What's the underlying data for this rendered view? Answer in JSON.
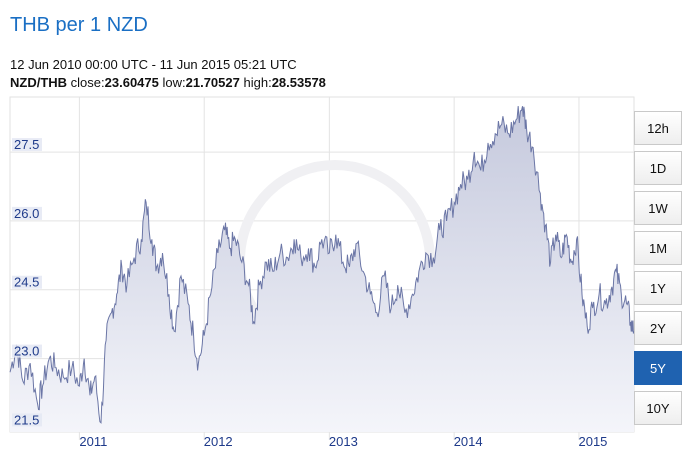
{
  "header": {
    "title": "THB per 1 NZD",
    "date_range": "12 Jun 2010 00:00 UTC - 11 Jun 2015 05:21 UTC",
    "pair": "NZD/THB",
    "close_label": "close:",
    "close_value": "23.60475",
    "low_label": "low:",
    "low_value": "21.70527",
    "high_label": "high:",
    "high_value": "28.53578"
  },
  "range_buttons": [
    {
      "label": "12h",
      "active": false
    },
    {
      "label": "1D",
      "active": false
    },
    {
      "label": "1W",
      "active": false
    },
    {
      "label": "1M",
      "active": false
    },
    {
      "label": "1Y",
      "active": false
    },
    {
      "label": "2Y",
      "active": false
    },
    {
      "label": "5Y",
      "active": true
    },
    {
      "label": "10Y",
      "active": false
    }
  ],
  "colors": {
    "title": "#1a6fc4",
    "line": "#6b76a6",
    "area_top": "#c5c9dd",
    "area_bottom": "#f4f5fa",
    "active_button": "#1f62b0",
    "y_label_bg": "#e4e7f3"
  },
  "chart_data": {
    "type": "area",
    "x_start": "2010-06-12",
    "x_end": "2015-06-11",
    "x_ticks": [
      "2011",
      "2012",
      "2013",
      "2014",
      "2015"
    ],
    "y_ticks": [
      21.5,
      23.0,
      24.5,
      26.0,
      27.5
    ],
    "ylim": [
      21.4,
      28.7
    ],
    "grid": true,
    "points": [
      [
        "2010-06-12",
        22.7
      ],
      [
        "2010-07-01",
        23.3
      ],
      [
        "2010-07-20",
        22.5
      ],
      [
        "2010-08-10",
        22.9
      ],
      [
        "2010-09-01",
        22.0
      ],
      [
        "2010-09-15",
        22.4
      ],
      [
        "2010-10-05",
        23.0
      ],
      [
        "2010-10-25",
        22.8
      ],
      [
        "2010-11-15",
        22.6
      ],
      [
        "2010-12-10",
        22.8
      ],
      [
        "2011-01-01",
        22.4
      ],
      [
        "2011-01-15",
        23.0
      ],
      [
        "2011-02-01",
        22.2
      ],
      [
        "2011-02-15",
        22.6
      ],
      [
        "2011-03-05",
        21.6
      ],
      [
        "2011-03-20",
        23.4
      ],
      [
        "2011-04-05",
        24.0
      ],
      [
        "2011-04-20",
        24.4
      ],
      [
        "2011-05-05",
        25.0
      ],
      [
        "2011-05-20",
        24.6
      ],
      [
        "2011-06-10",
        25.2
      ],
      [
        "2011-07-01",
        25.6
      ],
      [
        "2011-07-15",
        26.4
      ],
      [
        "2011-08-01",
        25.6
      ],
      [
        "2011-08-15",
        25.0
      ],
      [
        "2011-09-01",
        25.3
      ],
      [
        "2011-09-20",
        24.4
      ],
      [
        "2011-10-05",
        23.6
      ],
      [
        "2011-10-25",
        24.8
      ],
      [
        "2011-11-15",
        24.2
      ],
      [
        "2011-12-01",
        23.5
      ],
      [
        "2011-12-15",
        22.9
      ],
      [
        "2012-01-01",
        23.5
      ],
      [
        "2012-01-20",
        24.4
      ],
      [
        "2012-02-10",
        25.3
      ],
      [
        "2012-03-01",
        25.8
      ],
      [
        "2012-03-15",
        25.4
      ],
      [
        "2012-04-01",
        25.6
      ],
      [
        "2012-04-20",
        25.1
      ],
      [
        "2012-05-10",
        24.6
      ],
      [
        "2012-05-25",
        23.8
      ],
      [
        "2012-06-10",
        24.6
      ],
      [
        "2012-07-01",
        25.1
      ],
      [
        "2012-07-20",
        24.9
      ],
      [
        "2012-08-10",
        25.3
      ],
      [
        "2012-09-01",
        25.2
      ],
      [
        "2012-09-20",
        25.6
      ],
      [
        "2012-10-10",
        25.2
      ],
      [
        "2012-11-01",
        25.4
      ],
      [
        "2012-11-20",
        25.0
      ],
      [
        "2012-12-10",
        25.6
      ],
      [
        "2013-01-01",
        25.3
      ],
      [
        "2013-01-20",
        25.7
      ],
      [
        "2013-02-10",
        25.1
      ],
      [
        "2013-03-01",
        25.0
      ],
      [
        "2013-03-20",
        25.5
      ],
      [
        "2013-04-10",
        24.9
      ],
      [
        "2013-05-01",
        24.4
      ],
      [
        "2013-05-20",
        24.0
      ],
      [
        "2013-06-10",
        24.8
      ],
      [
        "2013-07-01",
        24.1
      ],
      [
        "2013-07-20",
        24.6
      ],
      [
        "2013-08-10",
        24.0
      ],
      [
        "2013-09-01",
        24.4
      ],
      [
        "2013-09-20",
        24.9
      ],
      [
        "2013-10-10",
        25.3
      ],
      [
        "2013-11-01",
        25.2
      ],
      [
        "2013-11-20",
        25.8
      ],
      [
        "2013-12-10",
        26.0
      ],
      [
        "2014-01-01",
        26.4
      ],
      [
        "2014-01-20",
        26.8
      ],
      [
        "2014-02-10",
        26.9
      ],
      [
        "2014-03-01",
        27.5
      ],
      [
        "2014-03-20",
        27.1
      ],
      [
        "2014-04-10",
        27.7
      ],
      [
        "2014-05-01",
        27.9
      ],
      [
        "2014-05-20",
        28.1
      ],
      [
        "2014-06-10",
        27.9
      ],
      [
        "2014-07-01",
        28.2
      ],
      [
        "2014-07-20",
        28.5
      ],
      [
        "2014-08-01",
        28.0
      ],
      [
        "2014-08-20",
        27.6
      ],
      [
        "2014-09-10",
        26.6
      ],
      [
        "2014-09-25",
        25.9
      ],
      [
        "2014-10-10",
        25.1
      ],
      [
        "2014-10-25",
        25.7
      ],
      [
        "2014-11-10",
        25.2
      ],
      [
        "2014-11-25",
        25.7
      ],
      [
        "2014-12-10",
        25.1
      ],
      [
        "2014-12-25",
        25.6
      ],
      [
        "2015-01-10",
        24.4
      ],
      [
        "2015-01-25",
        23.7
      ],
      [
        "2015-02-10",
        24.1
      ],
      [
        "2015-03-01",
        24.4
      ],
      [
        "2015-03-20",
        24.2
      ],
      [
        "2015-04-05",
        24.5
      ],
      [
        "2015-04-20",
        24.9
      ],
      [
        "2015-05-05",
        24.4
      ],
      [
        "2015-05-20",
        24.2
      ],
      [
        "2015-06-01",
        23.8
      ],
      [
        "2015-06-11",
        23.6
      ]
    ]
  }
}
